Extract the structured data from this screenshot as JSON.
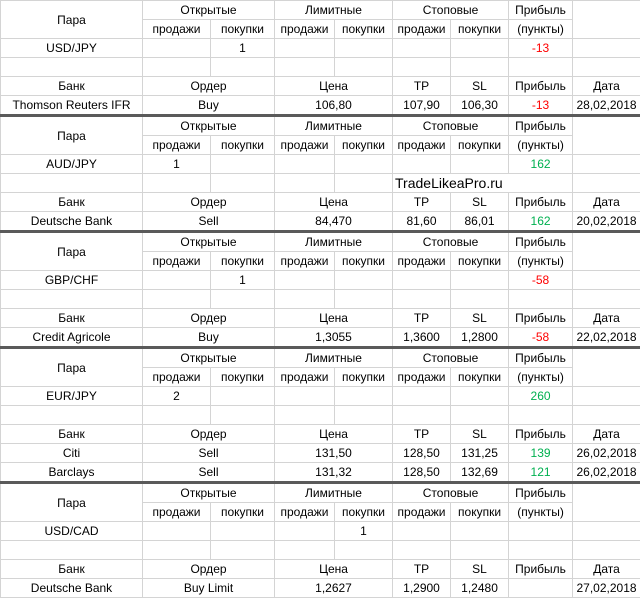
{
  "blocks": [
    {
      "pair_header": [
        "Пара",
        "Открытые",
        "Лимитные",
        "Стоповые",
        "Прибыль"
      ],
      "sub_header": [
        "продажи",
        "покупки",
        "продажи",
        "покупки",
        "продажи",
        "покупки",
        "(пункты)"
      ],
      "pair_row": [
        "USD/JPY",
        null,
        1,
        null,
        null,
        null,
        null,
        -13
      ],
      "order_header": [
        "Банк",
        "Ордер",
        "Цена",
        "TP",
        "SL",
        "Прибыль",
        "Дата"
      ],
      "orders": [
        [
          "Thomson Reuters IFR",
          "Buy",
          "106,80",
          "107,90",
          "106,30",
          -13,
          "28,02,2018"
        ]
      ]
    },
    {
      "pair_header": [
        "Пара",
        "Открытые",
        "Лимитные",
        "Стоповые",
        "Прибыль"
      ],
      "sub_header": [
        "продажи",
        "покупки",
        "продажи",
        "покупки",
        "продажи",
        "покупки",
        "(пункты)"
      ],
      "pair_row": [
        "AUD/JPY",
        1,
        null,
        null,
        null,
        null,
        null,
        162
      ],
      "watermark": "TradeLikeaPro.ru",
      "order_header": [
        "Банк",
        "Ордер",
        "Цена",
        "TP",
        "SL",
        "Прибыль",
        "Дата"
      ],
      "orders": [
        [
          "Deutsche Bank",
          "Sell",
          "84,470",
          "81,60",
          "86,01",
          162,
          "20,02,2018"
        ]
      ]
    },
    {
      "pair_header": [
        "Пара",
        "Открытые",
        "Лимитные",
        "Стоповые",
        "Прибыль"
      ],
      "sub_header": [
        "продажи",
        "покупки",
        "продажи",
        "покупки",
        "продажи",
        "покупки",
        "(пункты)"
      ],
      "pair_row": [
        "GBP/CHF",
        null,
        1,
        null,
        null,
        null,
        null,
        -58
      ],
      "order_header": [
        "Банк",
        "Ордер",
        "Цена",
        "TP",
        "SL",
        "Прибыль",
        "Дата"
      ],
      "orders": [
        [
          "Credit Agricole",
          "Buy",
          "1,3055",
          "1,3600",
          "1,2800",
          -58,
          "22,02,2018"
        ]
      ]
    },
    {
      "pair_header": [
        "Пара",
        "Открытые",
        "Лимитные",
        "Стоповые",
        "Прибыль"
      ],
      "sub_header": [
        "продажи",
        "покупки",
        "продажи",
        "покупки",
        "продажи",
        "покупки",
        "(пункты)"
      ],
      "pair_row": [
        "EUR/JPY",
        2,
        null,
        null,
        null,
        null,
        null,
        260
      ],
      "order_header": [
        "Банк",
        "Ордер",
        "Цена",
        "TP",
        "SL",
        "Прибыль",
        "Дата"
      ],
      "orders": [
        [
          "Citi",
          "Sell",
          "131,50",
          "128,50",
          "131,25",
          139,
          "26,02,2018"
        ],
        [
          "Barclays",
          "Sell",
          "131,32",
          "128,50",
          "132,69",
          121,
          "26,02,2018"
        ]
      ]
    },
    {
      "pair_header": [
        "Пара",
        "Открытые",
        "Лимитные",
        "Стоповые",
        "Прибыль"
      ],
      "sub_header": [
        "продажи",
        "покупки",
        "продажи",
        "покупки",
        "продажи",
        "покупки",
        "(пункты)"
      ],
      "pair_row": [
        "USD/CAD",
        null,
        null,
        null,
        1,
        null,
        null,
        null
      ],
      "order_header": [
        "Банк",
        "Ордер",
        "Цена",
        "TP",
        "SL",
        "Прибыль",
        "Дата"
      ],
      "orders": [
        [
          "Deutsche Bank",
          "Buy Limit",
          "1,2627",
          "1,2900",
          "1,2480",
          null,
          "27,02,2018"
        ]
      ]
    }
  ]
}
